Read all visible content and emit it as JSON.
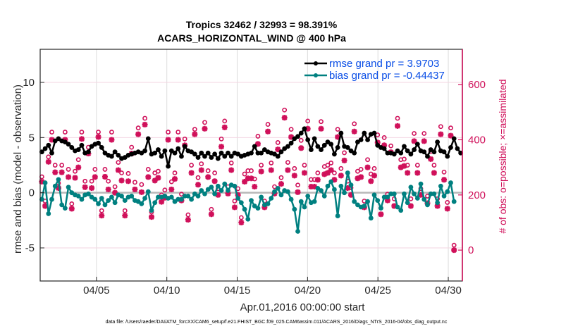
{
  "chart_data": {
    "type": "line",
    "title": [
      "Tropics 32462 / 32993 = 98.391%",
      "ACARS_HORIZONTAL_WIND @ 400 hPa"
    ],
    "xlabel": "Apr.01,2016 00:00:00 start",
    "ylabel": "rmse and bias (model - observation)",
    "ylabel_right": "# of obs: o=possible; ×=assimilated",
    "footnote": "data file: /Users/raeder/DAI/ATM_forcXX/CAM6_setup/f.e21.FHIST_BGC.f09_025.CAM6assim.011/ACARS_2016/Diags_NTrS_2016-04/obs_diag_output.nc",
    "x_unit": "days since Apr.01,2016 00:00:00",
    "xlim": [
      0,
      30
    ],
    "ylim": [
      -8,
      13
    ],
    "ylim_right": [
      -112,
      728
    ],
    "x_ticks": [
      4,
      9,
      14,
      19,
      24,
      29
    ],
    "x_tick_labels": [
      "04/05",
      "04/10",
      "04/15",
      "04/20",
      "04/25",
      "04/30"
    ],
    "y_ticks": [
      -5,
      0,
      5,
      10
    ],
    "y_tick_labels": [
      "-5",
      "0",
      "5",
      "10"
    ],
    "y_ticks_right": [
      0,
      200,
      400,
      600
    ],
    "y_tick_labels_right": [
      "0",
      "200",
      "400",
      "600"
    ],
    "grid": true,
    "legend_position": "top-right",
    "colors": {
      "rmse": "#000000",
      "bias": "#008080",
      "obs": "#d0105a",
      "legend_text": "#0a4ee6",
      "zero_line": "#b0b0b0"
    },
    "series": [
      {
        "name": "rmse grand pr = 3.9703",
        "values": [
          3.7,
          4.0,
          4.3,
          3.6,
          4.7,
          4.9,
          4.7,
          4.6,
          4.4,
          4.1,
          3.8,
          3.9,
          4.3,
          3.6,
          3.7,
          4.2,
          4.4,
          4.5,
          4.1,
          3.6,
          3.4,
          3.3,
          3.7,
          3.4,
          3.1,
          3.2,
          3.4,
          3.5,
          3.6,
          3.7,
          3.6,
          3.8,
          4.9,
          3.5,
          3.6,
          3.9,
          3.3,
          3.8,
          2.4,
          3.8,
          3.6,
          4.0,
          3.3,
          4.2,
          3.8,
          3.7,
          3.5,
          3.2,
          3.6,
          3.3,
          3.6,
          3.2,
          3.5,
          3.1,
          3.6,
          3.3,
          3.6,
          3.3,
          3.6,
          3.5,
          3.3,
          3.4,
          3.5,
          3.6,
          4.2,
          3.6,
          3.6,
          3.9,
          3.7,
          3.6,
          3.5,
          3.3,
          3.7,
          4.0,
          4.2,
          4.5,
          4.9,
          5.1,
          5.4,
          5.8,
          4.8,
          3.9,
          4.9,
          4.2,
          3.9,
          4.3,
          4.6,
          4.4,
          3.5,
          4.1,
          5.4,
          4.2,
          4.1,
          3.8,
          3.6,
          4.6,
          4.8,
          5.4,
          4.8,
          5.3,
          5.4,
          4.3,
          4.1,
          4.0,
          3.6,
          3.6,
          3.5,
          3.8,
          3.6,
          4.2,
          3.8,
          3.5,
          3.9,
          4.4,
          3.8,
          3.7,
          3.3,
          3.9,
          3.7,
          4.6,
          3.8,
          3.7,
          3.3,
          4.1,
          4.9,
          4.0,
          3.6
        ]
      },
      {
        "name": "bias grand pr = -0.44437",
        "values": [
          -0.6,
          0.9,
          -1.9,
          -0.6,
          0.6,
          1.2,
          -1.1,
          -1.4,
          0.5,
          0.0,
          -0.2,
          -0.3,
          -0.6,
          -0.2,
          -0.1,
          -0.4,
          -0.6,
          -1.0,
          -0.5,
          -1.1,
          -0.7,
          -0.4,
          -0.9,
          -0.2,
          -0.3,
          -0.7,
          -0.4,
          -0.3,
          -0.7,
          -0.8,
          -1.0,
          -0.5,
          0.1,
          -1.6,
          -0.9,
          -0.4,
          -0.4,
          -0.3,
          -0.5,
          -0.4,
          -0.8,
          -0.6,
          -0.6,
          -0.3,
          -0.3,
          -0.6,
          -0.1,
          -0.3,
          0.2,
          -0.1,
          0.3,
          0.5,
          -0.1,
          0.6,
          0.2,
          0.8,
          0.2,
          0.7,
          0.6,
          -0.5,
          -0.9,
          -1.5,
          -2.4,
          -0.7,
          -1.2,
          -1.4,
          -0.4,
          -1.1,
          -1.0,
          -0.5,
          0.1,
          0.4,
          -0.2,
          0.2,
          0.1,
          -0.6,
          -1.5,
          -3.5,
          -0.8,
          -1.3,
          -0.3,
          -0.9,
          -0.8,
          0.4,
          0.2,
          -0.3,
          0.6,
          1.0,
          0.3,
          -2.1,
          0.6,
          0.0,
          1.8,
          0.7,
          -0.8,
          -1.1,
          -1.3,
          -1.2,
          -0.8,
          -2.3,
          -0.2,
          -0.7,
          -1.4,
          -0.4,
          -0.4,
          -0.1,
          -0.1,
          -1.3,
          -1.6,
          -0.1,
          -0.9,
          0.5,
          -0.1,
          -0.5,
          0.8,
          -0.6,
          -1.1,
          -0.1,
          -0.1,
          -0.9,
          0.6,
          -0.3,
          0.1,
          0.9,
          -0.8
        ]
      },
      {
        "name": "# obs assimilated",
        "values": [
          248,
          160,
          320,
          400,
          282,
          225,
          282,
          400,
          265,
          150,
          262,
          300,
          403,
          228,
          350,
          225,
          265,
          410,
          125,
          266,
          220,
          400,
          208,
          290,
          252,
          125,
          250,
          350,
          220,
          420,
          210,
          455,
          265,
          120,
          252,
          262,
          175,
          190,
          400,
          220,
          258,
          400,
          180,
          380,
          110,
          280,
          420,
          237,
          290,
          440,
          265,
          130,
          250,
          200,
          375,
          445,
          205,
          290,
          155,
          200,
          100,
          248,
          260,
          260,
          230,
          385,
          285,
          155,
          430,
          290,
          205,
          365,
          240,
          480,
          290,
          410,
          270,
          210,
          370,
          280,
          440,
          230,
          230,
          255,
          440,
          275,
          280,
          290,
          255,
          410,
          270,
          325,
          225,
          200,
          430,
          260,
          265,
          155,
          300,
          250,
          270,
          390,
          130,
          380,
          180,
          355,
          160,
          450,
          300,
          305,
          280,
          160,
          395,
          280,
          200,
          395,
          170,
          330,
          280,
          160,
          420,
          255,
          150,
          415,
          0
        ]
      },
      {
        "name": "# obs possible",
        "values": [
          248,
          160,
          320,
          410,
          290,
          225,
          290,
          410,
          275,
          150,
          268,
          310,
          410,
          232,
          355,
          232,
          275,
          410,
          125,
          275,
          232,
          410,
          212,
          300,
          262,
          125,
          260,
          355,
          228,
          425,
          220,
          460,
          275,
          120,
          262,
          268,
          182,
          200,
          410,
          230,
          262,
          410,
          185,
          385,
          110,
          290,
          420,
          245,
          295,
          445,
          270,
          130,
          262,
          205,
          385,
          450,
          212,
          298,
          160,
          205,
          100,
          258,
          270,
          270,
          240,
          395,
          290,
          160,
          438,
          298,
          212,
          372,
          245,
          490,
          300,
          420,
          278,
          218,
          380,
          290,
          450,
          238,
          238,
          262,
          448,
          285,
          290,
          298,
          262,
          420,
          278,
          335,
          232,
          208,
          440,
          268,
          275,
          160,
          310,
          258,
          278,
          400,
          135,
          390,
          185,
          360,
          168,
          460,
          310,
          312,
          290,
          168,
          405,
          290,
          205,
          405,
          178,
          340,
          290,
          168,
          430,
          265,
          155,
          425,
          0
        ]
      }
    ]
  }
}
